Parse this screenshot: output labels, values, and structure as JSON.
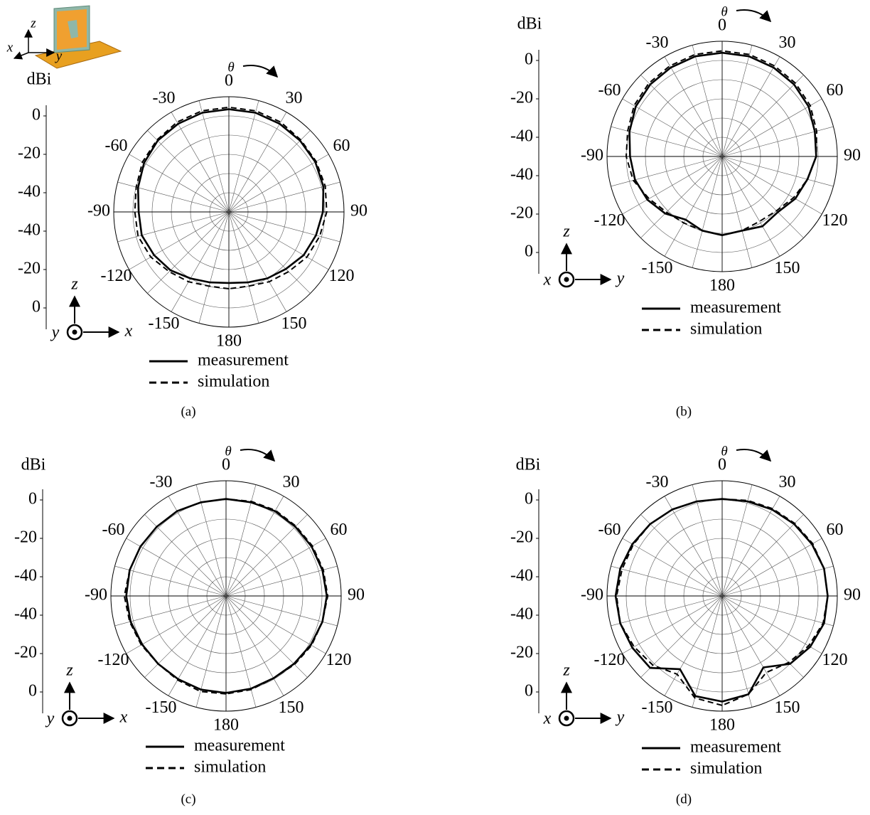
{
  "chart_data": [
    {
      "type": "polar",
      "caption": "(a)",
      "y_axis_label": "dBi",
      "theta_label": "θ",
      "rlim": [
        -50,
        10
      ],
      "rticks": [
        0,
        -20,
        -40
      ],
      "rgrid": [
        -40,
        -30,
        -20,
        -10,
        0,
        10
      ],
      "thetaticks": [
        0,
        30,
        60,
        90,
        120,
        150,
        180,
        -150,
        -120,
        -90,
        -60,
        -30
      ],
      "theta_grid_step": 15,
      "axes_glyph": {
        "up": "z",
        "right": "x",
        "out": "y"
      },
      "inset_axes": {
        "up": "z",
        "left": "x",
        "right": "y"
      },
      "theta": [
        -180,
        -165,
        -150,
        -135,
        -120,
        -105,
        -90,
        -75,
        -60,
        -45,
        -30,
        -15,
        0,
        15,
        30,
        45,
        60,
        75,
        90,
        105,
        120,
        135,
        150,
        165
      ],
      "series": [
        {
          "name": "measurement",
          "color": "#000000",
          "line_style": "solid",
          "values": [
            -13,
            -12,
            -10,
            -7,
            -5,
            -3,
            -3,
            -1,
            1,
            2.5,
            3,
            3.5,
            3.5,
            3.5,
            3,
            2.5,
            2,
            1,
            -1,
            -3,
            -5,
            -8,
            -10,
            -12
          ]
        },
        {
          "name": "simulation",
          "color": "#000000",
          "line_style": "dashed",
          "values": [
            -10,
            -10,
            -8,
            -6,
            -3,
            -1,
            -1,
            0,
            2,
            3,
            4,
            4.5,
            4.5,
            4.5,
            4,
            3,
            2.5,
            2,
            1,
            -1,
            -3,
            -6,
            -8,
            -10
          ]
        }
      ]
    },
    {
      "type": "polar",
      "caption": "(b)",
      "y_axis_label": "dBi",
      "theta_label": "θ",
      "rlim": [
        -50,
        10
      ],
      "rticks": [
        0,
        -20,
        -40
      ],
      "rgrid": [
        -40,
        -30,
        -20,
        -10,
        0,
        10
      ],
      "thetaticks": [
        0,
        30,
        60,
        90,
        120,
        150,
        180,
        -150,
        -120,
        -90,
        -60,
        -30
      ],
      "theta_grid_step": 15,
      "axes_glyph": {
        "up": "z",
        "right": "y",
        "out": "x"
      },
      "theta": [
        -180,
        -165,
        -150,
        -135,
        -120,
        -105,
        -90,
        -75,
        -60,
        -45,
        -30,
        -15,
        0,
        15,
        30,
        45,
        60,
        75,
        90,
        105,
        120,
        135,
        150,
        165
      ],
      "series": [
        {
          "name": "measurement",
          "color": "#000000",
          "line_style": "solid",
          "values": [
            -9,
            -10,
            -12,
            -8,
            -5,
            -3,
            -2,
            0,
            2,
            3,
            3.5,
            4,
            4,
            4,
            3.5,
            3,
            2,
            0,
            -1,
            -4,
            -6,
            -9,
            -8,
            -10
          ]
        },
        {
          "name": "simulation",
          "color": "#000000",
          "line_style": "dashed",
          "values": [
            -9,
            -10,
            -10,
            -9,
            -6,
            -2,
            0,
            1,
            3,
            4,
            4.5,
            5,
            5,
            5,
            4.5,
            4,
            3,
            1,
            -1,
            -4,
            -7,
            -10,
            -11,
            -10
          ]
        }
      ]
    },
    {
      "type": "polar",
      "caption": "(c)",
      "y_axis_label": "dBi",
      "theta_label": "θ",
      "rlim": [
        -50,
        10
      ],
      "rticks": [
        0,
        -20,
        -40
      ],
      "rgrid": [
        -40,
        -30,
        -20,
        -10,
        0,
        10
      ],
      "thetaticks": [
        0,
        30,
        60,
        90,
        120,
        150,
        180,
        -150,
        -120,
        -90,
        -60,
        -30
      ],
      "theta_grid_step": 15,
      "axes_glyph": {
        "up": "z",
        "right": "x",
        "out": "y"
      },
      "theta": [
        -180,
        -165,
        -150,
        -135,
        -120,
        -105,
        -90,
        -75,
        -60,
        -45,
        -30,
        -15,
        0,
        15,
        30,
        45,
        60,
        75,
        90,
        105,
        120,
        135,
        150,
        165
      ],
      "series": [
        {
          "name": "measurement",
          "color": "#000000",
          "line_style": "solid",
          "values": [
            0.5,
            0.5,
            0,
            0,
            0.5,
            1.5,
            2,
            2,
            1.5,
            1,
            1,
            0.5,
            0.5,
            0.5,
            1,
            1,
            1.5,
            2,
            2.5,
            2,
            1,
            0,
            -0.5,
            0
          ]
        },
        {
          "name": "simulation",
          "color": "#000000",
          "line_style": "dashed",
          "values": [
            1,
            1.5,
            0.5,
            0,
            1,
            2,
            3,
            2,
            1.5,
            1,
            1,
            0.5,
            0.5,
            1,
            1.5,
            1.5,
            2,
            2.5,
            3,
            2,
            1.5,
            0.5,
            -0.5,
            0.5
          ]
        }
      ]
    },
    {
      "type": "polar",
      "caption": "(d)",
      "y_axis_label": "dBi",
      "theta_label": "θ",
      "rlim": [
        -50,
        10
      ],
      "rticks": [
        0,
        -20,
        -40
      ],
      "rgrid": [
        -40,
        -30,
        -20,
        -10,
        0,
        10
      ],
      "thetaticks": [
        0,
        30,
        60,
        90,
        120,
        150,
        180,
        -150,
        -120,
        -90,
        -60,
        -30
      ],
      "theta_grid_step": 15,
      "axes_glyph": {
        "up": "z",
        "right": "y",
        "out": "x"
      },
      "theta": [
        -180,
        -165,
        -150,
        -135,
        -120,
        -105,
        -90,
        -75,
        -60,
        -45,
        -30,
        -15,
        0,
        15,
        30,
        45,
        60,
        75,
        90,
        105,
        120,
        135,
        150,
        165
      ],
      "series": [
        {
          "name": "measurement",
          "color": "#000000",
          "line_style": "solid",
          "values": [
            5,
            4,
            -6,
            3,
            4,
            5,
            5.5,
            5,
            4,
            3,
            2,
            1,
            0.5,
            1,
            2,
            3,
            4,
            5,
            5,
            5,
            3,
            0,
            -7,
            3
          ]
        },
        {
          "name": "simulation",
          "color": "#000000",
          "line_style": "dashed",
          "values": [
            7,
            5,
            -3,
            1,
            3,
            5,
            5,
            4,
            3.5,
            3,
            2,
            1,
            0.5,
            1.5,
            2.5,
            3.5,
            4.5,
            5,
            5,
            4.5,
            2,
            -1,
            -4,
            3
          ]
        }
      ]
    }
  ]
}
